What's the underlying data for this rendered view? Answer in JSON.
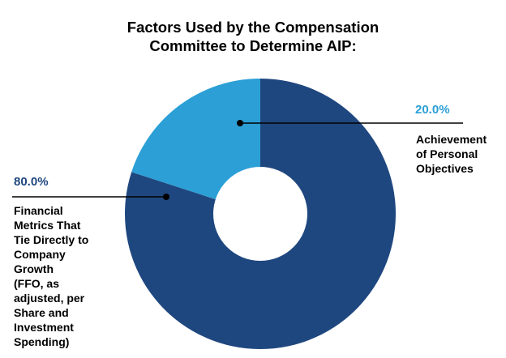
{
  "chart_data": {
    "type": "pie",
    "variant": "donut",
    "title_lines": [
      "Factors Used by the Compensation",
      "Committee to Determine AIP:"
    ],
    "slices": [
      {
        "key": "personal",
        "value": 20.0,
        "value_label": "20.0%",
        "label_lines": [
          "Achievement",
          "of Personal",
          "Objectives"
        ],
        "color": "#2b9fd6"
      },
      {
        "key": "financial",
        "value": 80.0,
        "value_label": "80.0%",
        "label_lines": [
          "Financial",
          "Metrics That",
          "Tie Directly to",
          "Company",
          "Growth",
          "(FFO, as",
          "adjusted, per",
          "Share and",
          "Investment",
          "Spending)"
        ],
        "color": "#1f477f"
      }
    ],
    "legend": "none",
    "start_angle": "12 o'clock",
    "direction": "clockwise"
  }
}
